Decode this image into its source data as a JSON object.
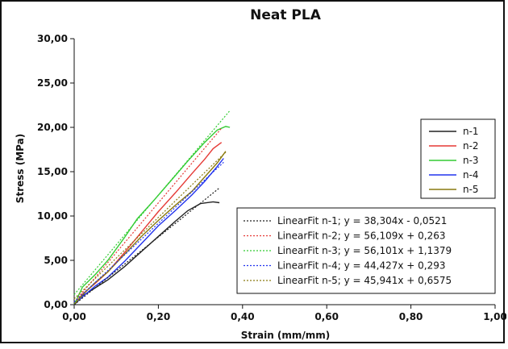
{
  "chart_data": {
    "type": "line",
    "title": "Neat PLA",
    "xlabel": "Strain (mm/mm)",
    "ylabel": "Stress (MPa)",
    "xlim": [
      0,
      1
    ],
    "ylim": [
      0,
      30
    ],
    "xticks": [
      0,
      0.2,
      0.4,
      0.6,
      0.8,
      1.0
    ],
    "yticks": [
      0,
      5,
      10,
      15,
      20,
      25,
      30
    ],
    "xtick_labels": [
      "0,00",
      "0,20",
      "0,40",
      "0,60",
      "0,80",
      "1,00"
    ],
    "ytick_labels": [
      "0,00",
      "5,00",
      "10,00",
      "15,00",
      "20,00",
      "25,00",
      "30,00"
    ],
    "grid": false,
    "series": [
      {
        "name": "n-1",
        "color": "#222222",
        "x": [
          0,
          0.02,
          0.05,
          0.08,
          0.12,
          0.16,
          0.2,
          0.24,
          0.27,
          0.3,
          0.33,
          0.345
        ],
        "y": [
          0,
          1.0,
          1.9,
          2.8,
          4.3,
          6.0,
          7.7,
          9.4,
          10.6,
          11.4,
          11.6,
          11.5
        ]
      },
      {
        "name": "n-2",
        "color": "#e53935",
        "x": [
          0,
          0.02,
          0.05,
          0.08,
          0.12,
          0.16,
          0.2,
          0.24,
          0.28,
          0.31,
          0.33,
          0.35
        ],
        "y": [
          0,
          1.2,
          2.4,
          3.7,
          5.9,
          8.2,
          10.5,
          12.6,
          14.8,
          16.4,
          17.6,
          18.3
        ]
      },
      {
        "name": "n-3",
        "color": "#33cc33",
        "x": [
          0,
          0.02,
          0.05,
          0.08,
          0.12,
          0.15,
          0.19,
          0.23,
          0.27,
          0.31,
          0.34,
          0.36,
          0.37
        ],
        "y": [
          0,
          2.0,
          3.4,
          5.0,
          7.6,
          9.7,
          11.8,
          14.0,
          16.2,
          18.3,
          19.7,
          20.1,
          20.0
        ]
      },
      {
        "name": "n-4",
        "color": "#2233ee",
        "x": [
          0,
          0.02,
          0.05,
          0.08,
          0.12,
          0.16,
          0.2,
          0.24,
          0.28,
          0.31,
          0.34,
          0.355
        ],
        "y": [
          0,
          0.9,
          2.1,
          3.1,
          4.9,
          6.9,
          8.9,
          10.6,
          12.4,
          13.9,
          15.6,
          16.5
        ]
      },
      {
        "name": "n-5",
        "color": "#8a7a10",
        "x": [
          0,
          0.02,
          0.05,
          0.08,
          0.12,
          0.16,
          0.2,
          0.24,
          0.28,
          0.31,
          0.34,
          0.36
        ],
        "y": [
          0,
          1.1,
          2.5,
          3.7,
          5.7,
          7.7,
          9.5,
          11.2,
          12.8,
          14.4,
          16.0,
          17.3
        ]
      }
    ],
    "fits": [
      {
        "label": "LinearFit n-1; y = 38,304x - 0,0521",
        "color": "#222222",
        "slope": 38.304,
        "intercept": -0.0521,
        "xmax": 0.345
      },
      {
        "label": "LinearFit n-2; y = 56,109x + 0,263",
        "color": "#e53935",
        "slope": 56.109,
        "intercept": 0.263,
        "xmax": 0.35
      },
      {
        "label": "LinearFit n-3; y = 56,101x + 1,1379",
        "color": "#33cc33",
        "slope": 56.101,
        "intercept": 1.1379,
        "xmax": 0.37
      },
      {
        "label": "LinearFit n-4; y = 44,427x + 0,293",
        "color": "#2233ee",
        "slope": 44.427,
        "intercept": 0.293,
        "xmax": 0.355
      },
      {
        "label": "LinearFit n-5; y = 45,941x + 0,6575",
        "color": "#8a7a10",
        "slope": 45.941,
        "intercept": 0.6575,
        "xmax": 0.36
      }
    ],
    "legend_placement": "right"
  }
}
